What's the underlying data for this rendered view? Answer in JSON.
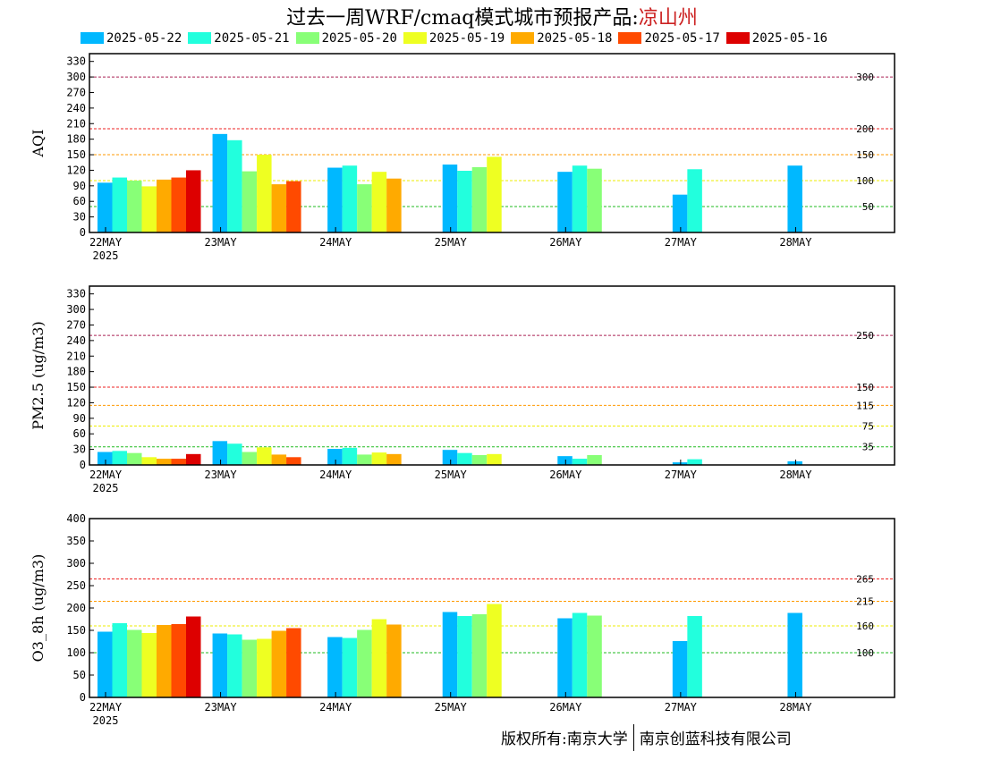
{
  "title": {
    "prefix": "过去一周WRF/cmaq模式城市预报产品:",
    "city": "凉山州"
  },
  "footer": {
    "left": "版权所有:南京大学",
    "right": "南京创蓝科技有限公司"
  },
  "colors": {
    "series": [
      "#00b8ff",
      "#22ffdd",
      "#88ff77",
      "#eeff22",
      "#ffaa00",
      "#ff4a00",
      "#dd0000"
    ],
    "grade_lines": {
      "green": "#22bb22",
      "yellow": "#eeee00",
      "orange": "#ff9900",
      "red": "#ee2222",
      "purple": "#aa2255"
    }
  },
  "chart_data": [
    {
      "type": "bar",
      "ylabel": "AQI",
      "ylim": [
        0,
        345
      ],
      "yticks": [
        0,
        30,
        60,
        90,
        120,
        150,
        180,
        210,
        240,
        270,
        300,
        330
      ],
      "categories": [
        "22MAY",
        "23MAY",
        "24MAY",
        "25MAY",
        "26MAY",
        "27MAY",
        "28MAY"
      ],
      "year_label": "2025",
      "thresholds": [
        {
          "value": 50,
          "label": "50",
          "color": "green"
        },
        {
          "value": 100,
          "label": "100",
          "color": "yellow"
        },
        {
          "value": 150,
          "label": "150",
          "color": "orange"
        },
        {
          "value": 200,
          "label": "200",
          "color": "red"
        },
        {
          "value": 300,
          "label": "300",
          "color": "purple"
        }
      ],
      "series": [
        {
          "name": "2025-05-22",
          "values": [
            96,
            190,
            125,
            131,
            117,
            73,
            129
          ]
        },
        {
          "name": "2025-05-21",
          "values": [
            106,
            178,
            129,
            119,
            129,
            122,
            null
          ]
        },
        {
          "name": "2025-05-20",
          "values": [
            100,
            118,
            93,
            126,
            123,
            null,
            null
          ]
        },
        {
          "name": "2025-05-19",
          "values": [
            89,
            150,
            117,
            146,
            null,
            null,
            null
          ]
        },
        {
          "name": "2025-05-18",
          "values": [
            102,
            93,
            104,
            null,
            null,
            null,
            null
          ]
        },
        {
          "name": "2025-05-17",
          "values": [
            106,
            99,
            null,
            null,
            null,
            null,
            null
          ]
        },
        {
          "name": "2025-05-16",
          "values": [
            120,
            null,
            null,
            null,
            null,
            null,
            null
          ]
        }
      ]
    },
    {
      "type": "bar",
      "ylabel": "PM2.5 (ug/m3)",
      "ylim": [
        0,
        345
      ],
      "yticks": [
        0,
        30,
        60,
        90,
        120,
        150,
        180,
        210,
        240,
        270,
        300,
        330
      ],
      "categories": [
        "22MAY",
        "23MAY",
        "24MAY",
        "25MAY",
        "26MAY",
        "27MAY",
        "28MAY"
      ],
      "year_label": "2025",
      "thresholds": [
        {
          "value": 35,
          "label": "35",
          "color": "green"
        },
        {
          "value": 75,
          "label": "75",
          "color": "yellow"
        },
        {
          "value": 115,
          "label": "115",
          "color": "orange"
        },
        {
          "value": 150,
          "label": "150",
          "color": "red"
        },
        {
          "value": 250,
          "label": "250",
          "color": "purple"
        }
      ],
      "series": [
        {
          "name": "2025-05-22",
          "values": [
            25,
            46,
            31,
            29,
            17,
            5,
            7
          ]
        },
        {
          "name": "2025-05-21",
          "values": [
            27,
            41,
            33,
            23,
            12,
            11,
            null
          ]
        },
        {
          "name": "2025-05-20",
          "values": [
            23,
            25,
            20,
            19,
            19,
            null,
            null
          ]
        },
        {
          "name": "2025-05-19",
          "values": [
            15,
            34,
            24,
            21,
            null,
            null,
            null
          ]
        },
        {
          "name": "2025-05-18",
          "values": [
            12,
            20,
            21,
            null,
            null,
            null,
            null
          ]
        },
        {
          "name": "2025-05-17",
          "values": [
            12,
            15,
            null,
            null,
            null,
            null,
            null
          ]
        },
        {
          "name": "2025-05-16",
          "values": [
            21,
            null,
            null,
            null,
            null,
            null,
            null
          ]
        }
      ]
    },
    {
      "type": "bar",
      "ylabel": "O3_8h (ug/m3)",
      "ylim": [
        0,
        400
      ],
      "yticks": [
        0,
        50,
        100,
        150,
        200,
        250,
        300,
        350,
        400
      ],
      "categories": [
        "22MAY",
        "23MAY",
        "24MAY",
        "25MAY",
        "26MAY",
        "27MAY",
        "28MAY"
      ],
      "year_label": "2025",
      "thresholds": [
        {
          "value": 100,
          "label": "100",
          "color": "green"
        },
        {
          "value": 160,
          "label": "160",
          "color": "yellow"
        },
        {
          "value": 215,
          "label": "215",
          "color": "orange"
        },
        {
          "value": 265,
          "label": "265",
          "color": "red"
        }
      ],
      "series": [
        {
          "name": "2025-05-22",
          "values": [
            147,
            143,
            135,
            191,
            177,
            126,
            189
          ]
        },
        {
          "name": "2025-05-21",
          "values": [
            166,
            141,
            133,
            182,
            189,
            182,
            null
          ]
        },
        {
          "name": "2025-05-20",
          "values": [
            151,
            129,
            151,
            186,
            183,
            null,
            null
          ]
        },
        {
          "name": "2025-05-19",
          "values": [
            144,
            131,
            175,
            209,
            null,
            null,
            null
          ]
        },
        {
          "name": "2025-05-18",
          "values": [
            162,
            149,
            163,
            null,
            null,
            null,
            null
          ]
        },
        {
          "name": "2025-05-17",
          "values": [
            164,
            155,
            null,
            null,
            null,
            null,
            null
          ]
        },
        {
          "name": "2025-05-16",
          "values": [
            181,
            null,
            null,
            null,
            null,
            null,
            null
          ]
        }
      ]
    }
  ]
}
